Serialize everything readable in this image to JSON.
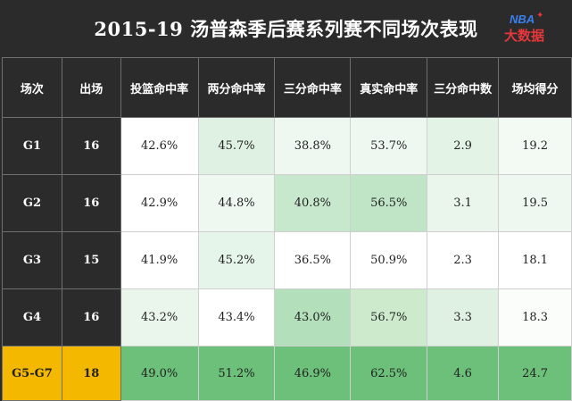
{
  "title": "2015-19 汤普森季后赛系列赛不同场次表现",
  "logo": {
    "top": "NBA",
    "bottom": "大数据",
    "sparkle": "✦"
  },
  "colors": {
    "background": "#2b2b2b",
    "highlight_row_label": "#f5b800",
    "green_strong": "#6cc07a",
    "green_light": "#eaf6ec"
  },
  "table": {
    "headers": [
      "场次",
      "出场",
      "投篮命中率",
      "两分命中率",
      "三分命中率",
      "真实命中率",
      "三分命中数",
      "场均得分"
    ],
    "rows": [
      {
        "cells": [
          "G1",
          "16",
          "42.6%",
          "45.7%",
          "38.8%",
          "53.7%",
          "2.9",
          "19.2"
        ],
        "colors": [
          "",
          "",
          "#ffffff",
          "#dff1e2",
          "#eef8f0",
          "#eef8f0",
          "#e3f3e6",
          "#f2faf3"
        ]
      },
      {
        "cells": [
          "G2",
          "16",
          "42.9%",
          "44.8%",
          "40.8%",
          "56.5%",
          "3.1",
          "19.5"
        ],
        "colors": [
          "",
          "",
          "#ffffff",
          "#eef8f0",
          "#c8e8ce",
          "#bfe4c6",
          "#eaf6ec",
          "#eef8f0"
        ]
      },
      {
        "cells": [
          "G3",
          "15",
          "41.9%",
          "45.2%",
          "36.5%",
          "50.9%",
          "2.3",
          "18.1"
        ],
        "colors": [
          "",
          "",
          "#ffffff",
          "#e6f5e9",
          "#ffffff",
          "#ffffff",
          "#ffffff",
          "#ffffff"
        ]
      },
      {
        "cells": [
          "G4",
          "16",
          "43.2%",
          "43.4%",
          "43.0%",
          "56.7%",
          "3.3",
          "18.3"
        ],
        "colors": [
          "",
          "",
          "#eaf6ec",
          "#ffffff",
          "#b3dfbb",
          "#cdeacc",
          "#dff1e2",
          "#fafdfa"
        ]
      },
      {
        "cells": [
          "G5-G7",
          "18",
          "49.0%",
          "51.2%",
          "46.9%",
          "62.5%",
          "4.6",
          "24.7"
        ],
        "colors": [
          "",
          "",
          "#6cc07a",
          "#6cc07a",
          "#6cc07a",
          "#6cc07a",
          "#6cc07a",
          "#6cc07a"
        ]
      }
    ]
  }
}
